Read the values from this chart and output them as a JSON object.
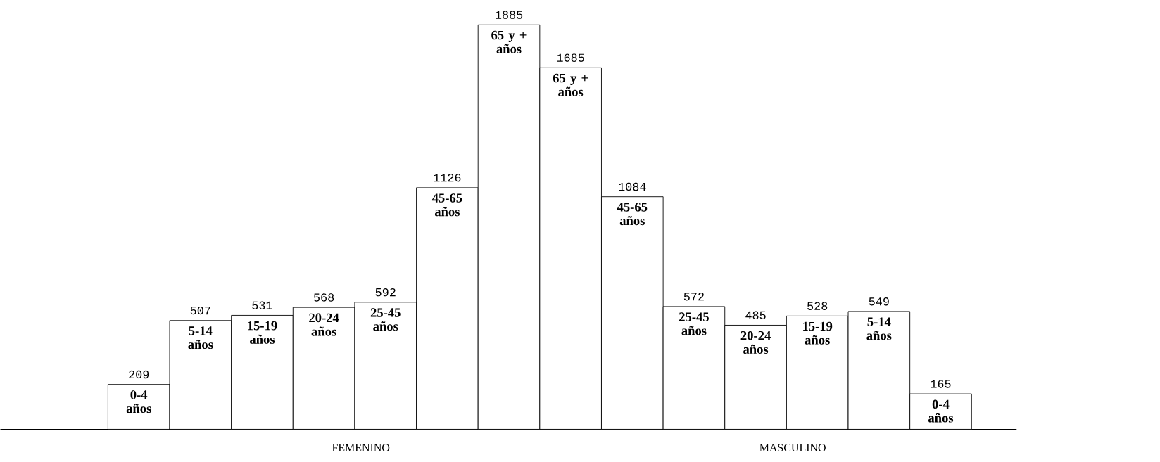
{
  "chart_data": {
    "type": "bar",
    "categories": [
      "0-4 años",
      "5-14 años",
      "15-19 años",
      "20-24 años",
      "25-45 años",
      "45-65 años",
      "65 y + años",
      "65 y + años",
      "45-65 años",
      "25-45 años",
      "20-24 años",
      "15-19 años",
      "5-14 años",
      "0-4 años"
    ],
    "values": [
      209,
      507,
      531,
      568,
      592,
      1126,
      1885,
      1685,
      1084,
      572,
      485,
      528,
      549,
      165
    ],
    "color": "#ffffff",
    "data_labels": true,
    "annotations": [
      "FEMENINO",
      "MASCULINO"
    ]
  }
}
